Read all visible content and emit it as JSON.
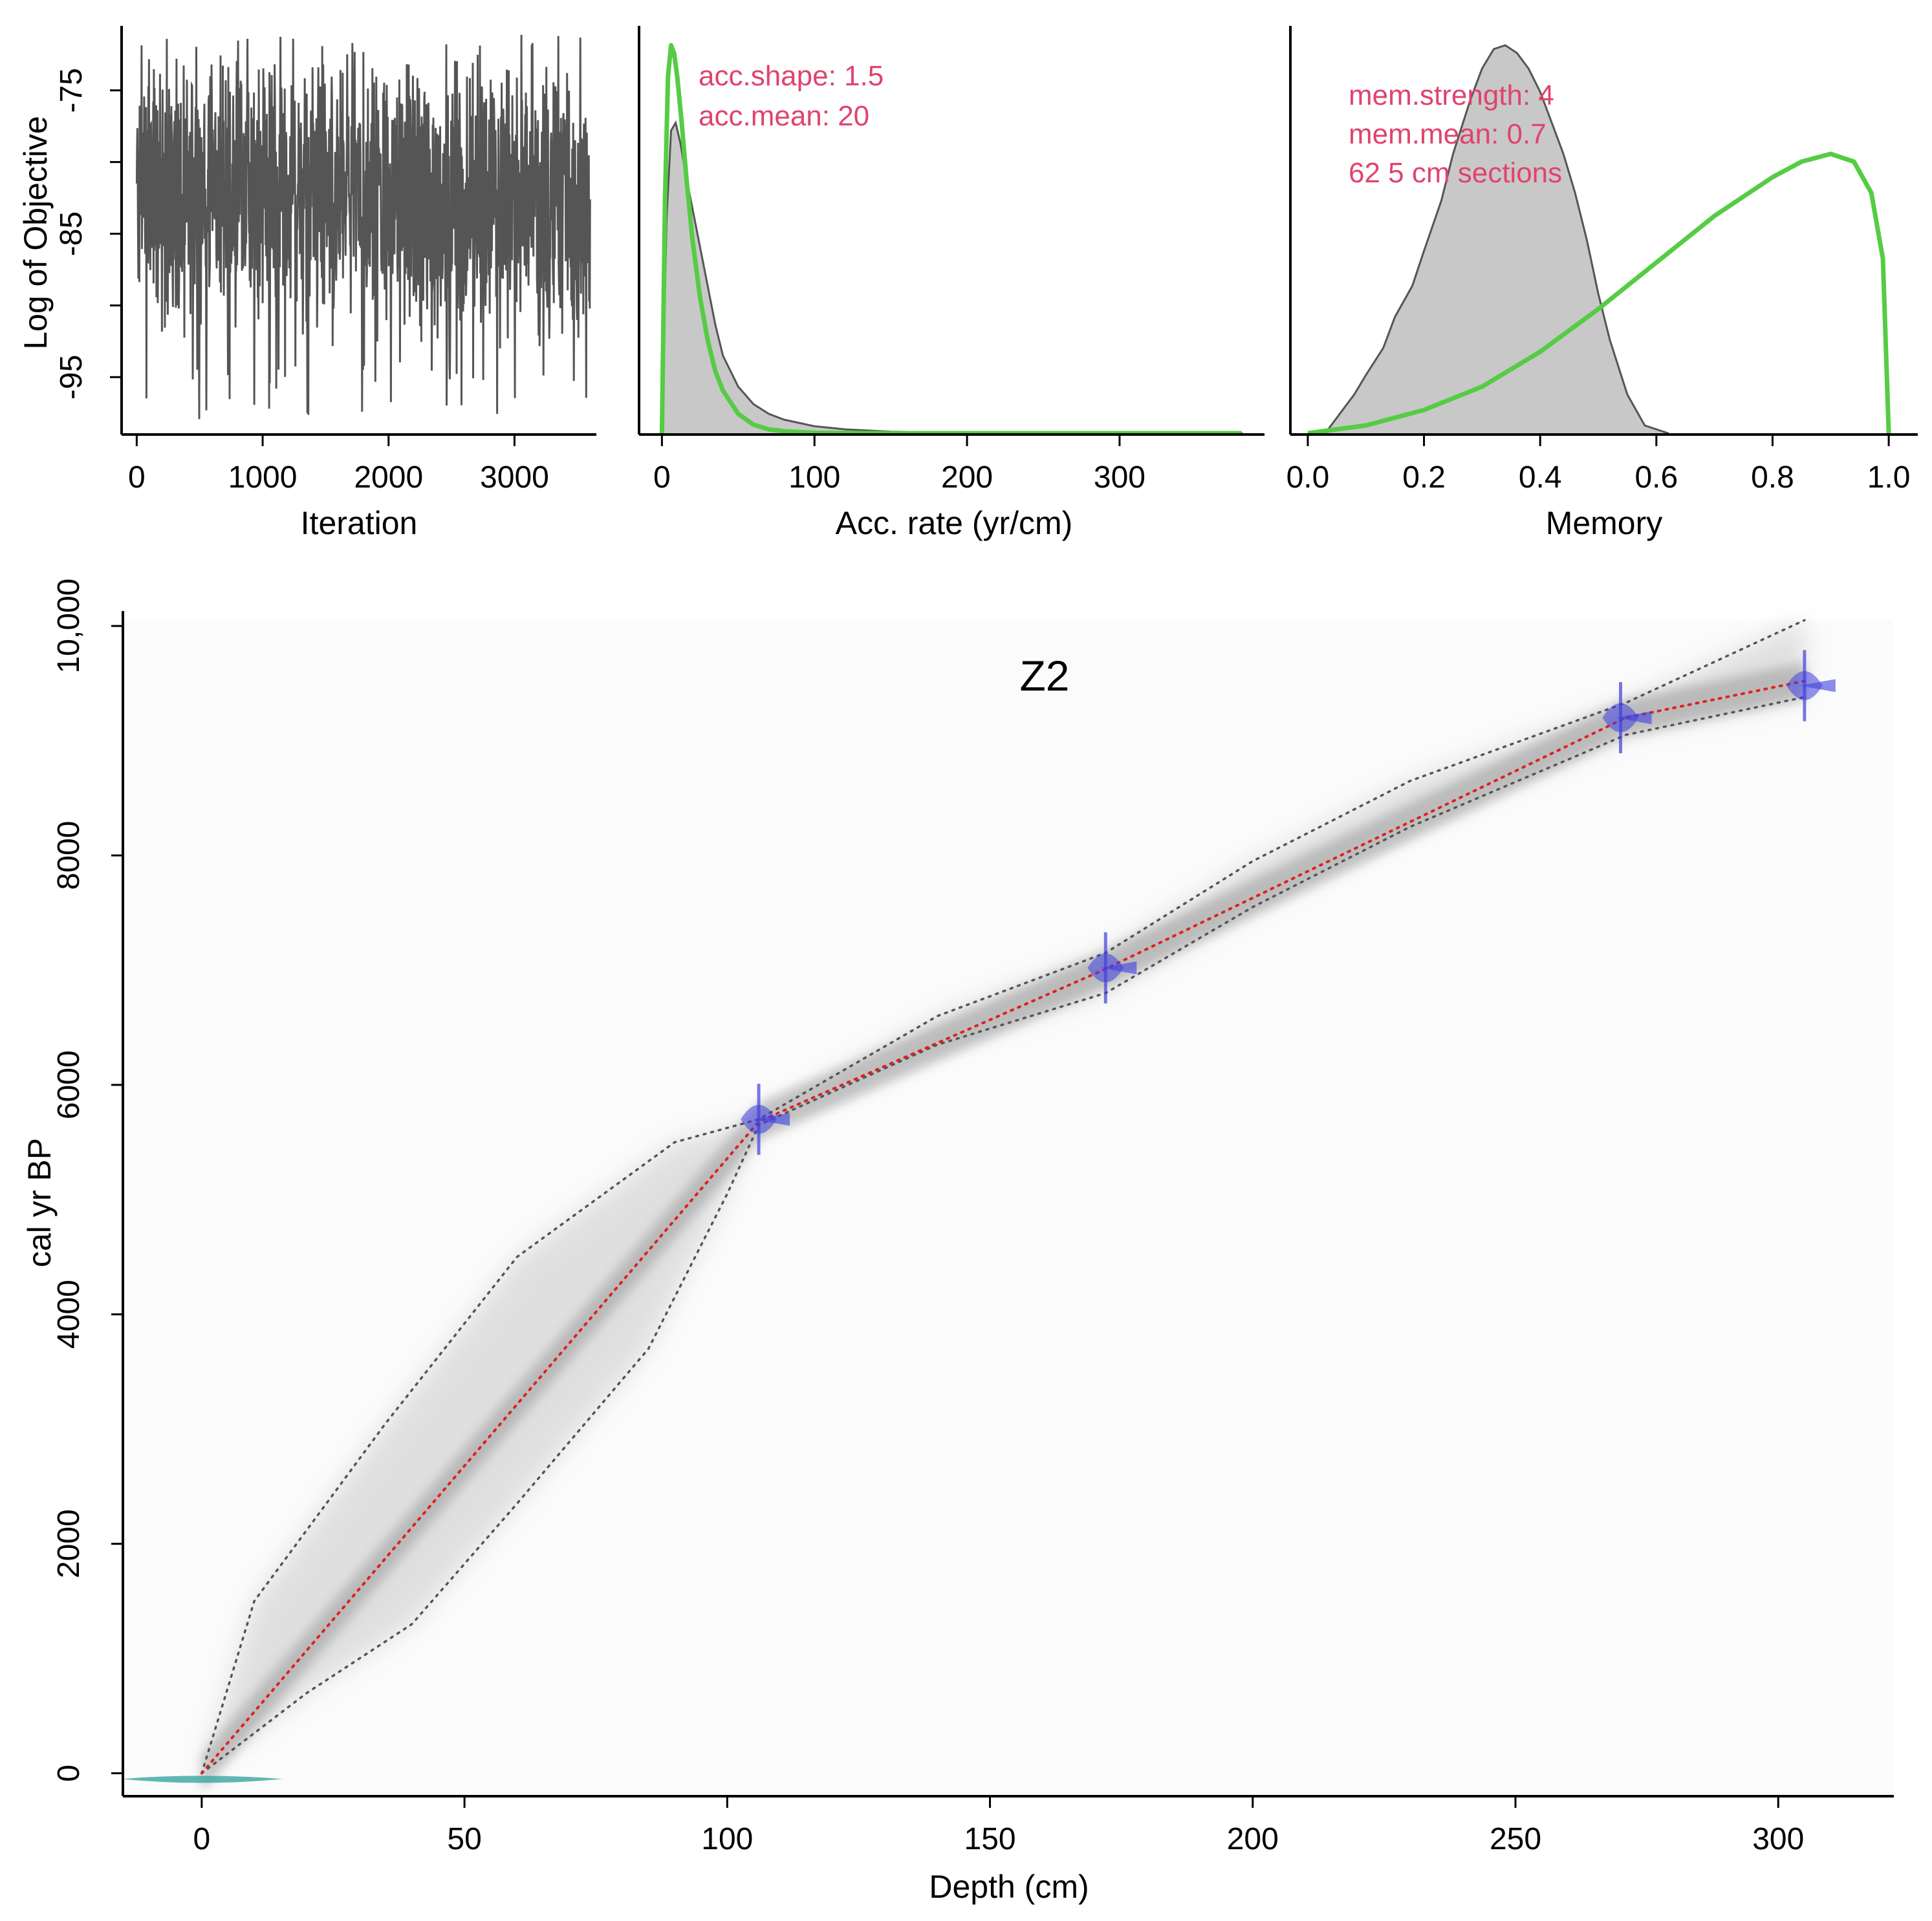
{
  "chart_data": [
    {
      "type": "line",
      "panel": "iterations",
      "xlabel": "Iteration",
      "ylabel": "Log of Objective",
      "xticks": [
        0,
        1000,
        2000,
        3000
      ],
      "yticks": [
        -75,
        -85,
        -95
      ],
      "xlim": [
        -120,
        3650
      ],
      "ylim": [
        -99,
        -70.5
      ],
      "n_iter": 3600,
      "trace_mean": -82.5,
      "trace_range": [
        -98,
        -71
      ],
      "color": "#555555"
    },
    {
      "type": "area",
      "panel": "accumulation",
      "xlabel": "Acc. rate (yr/cm)",
      "xticks": [
        0,
        100,
        200,
        300
      ],
      "xlim": [
        -15,
        395
      ],
      "annotations": [
        "acc.shape:  1.5",
        "acc.mean:  20"
      ],
      "annotation_color": "#e0436e",
      "series": [
        {
          "name": "posterior",
          "style": "grey-filled",
          "x": [
            0,
            3,
            6,
            9,
            12,
            16,
            20,
            25,
            30,
            35,
            40,
            50,
            60,
            70,
            80,
            100,
            120,
            150,
            200,
            250,
            300,
            380
          ],
          "y": [
            0.0,
            0.55,
            0.78,
            0.8,
            0.75,
            0.66,
            0.58,
            0.48,
            0.38,
            0.28,
            0.2,
            0.12,
            0.075,
            0.05,
            0.035,
            0.018,
            0.01,
            0.004,
            0.001,
            0.0005,
            0.0002,
            0
          ]
        },
        {
          "name": "prior",
          "style": "green-line",
          "x": [
            0,
            2,
            4,
            6,
            8,
            10,
            13,
            16,
            20,
            25,
            30,
            35,
            40,
            50,
            60,
            70,
            80,
            100,
            150,
            200,
            300,
            380
          ],
          "y": [
            0.0,
            0.6,
            0.92,
            1.0,
            0.98,
            0.92,
            0.8,
            0.66,
            0.5,
            0.35,
            0.24,
            0.16,
            0.11,
            0.05,
            0.022,
            0.01,
            0.005,
            0.001,
            0,
            0,
            0,
            0
          ]
        }
      ]
    },
    {
      "type": "area",
      "panel": "memory",
      "xlabel": "Memory",
      "xticks": [
        0.0,
        0.2,
        0.4,
        0.6,
        0.8,
        1.0
      ],
      "xlim": [
        -0.03,
        1.05
      ],
      "annotations": [
        "mem.strength: 4",
        "mem.mean: 0.7",
        "62 5 cm sections"
      ],
      "annotation_color": "#e0436e",
      "series": [
        {
          "name": "posterior",
          "style": "grey-filled",
          "x": [
            0.03,
            0.05,
            0.08,
            0.1,
            0.13,
            0.15,
            0.18,
            0.2,
            0.23,
            0.25,
            0.28,
            0.3,
            0.32,
            0.34,
            0.36,
            0.38,
            0.4,
            0.42,
            0.44,
            0.46,
            0.48,
            0.5,
            0.52,
            0.55,
            0.58,
            0.62
          ],
          "y": [
            0.0,
            0.04,
            0.1,
            0.15,
            0.22,
            0.3,
            0.38,
            0.47,
            0.6,
            0.72,
            0.86,
            0.94,
            0.99,
            1.0,
            0.98,
            0.94,
            0.88,
            0.8,
            0.72,
            0.62,
            0.5,
            0.36,
            0.24,
            0.1,
            0.02,
            0.0
          ]
        },
        {
          "name": "prior",
          "style": "green-line",
          "x": [
            0.0,
            0.05,
            0.1,
            0.2,
            0.3,
            0.4,
            0.5,
            0.6,
            0.7,
            0.8,
            0.85,
            0.9,
            0.94,
            0.97,
            0.99,
            1.0
          ],
          "y": [
            0.0,
            0.01,
            0.02,
            0.06,
            0.12,
            0.21,
            0.32,
            0.44,
            0.56,
            0.66,
            0.7,
            0.72,
            0.7,
            0.62,
            0.45,
            0.0
          ]
        }
      ]
    },
    {
      "type": "line",
      "panel": "age-depth",
      "title": "Z2",
      "xlabel": "Depth (cm)",
      "ylabel": "cal yr BP",
      "xticks": [
        0,
        50,
        100,
        150,
        200,
        250,
        300
      ],
      "yticks": [
        0,
        2000,
        4000,
        6000,
        8000,
        10000
      ],
      "ytick_labels": [
        "0",
        "2000",
        "4000",
        "6000",
        "8000",
        "10,000"
      ],
      "xlim": [
        -15,
        322
      ],
      "ylim": [
        -200,
        10130
      ],
      "series": [
        {
          "name": "mean model",
          "style": "red-dotted",
          "x": [
            0,
            106,
            172,
            271,
            305
          ],
          "y": [
            0,
            5680,
            7010,
            9200,
            9520
          ]
        },
        {
          "name": "95% upper range",
          "style": "grey-dotted",
          "x": [
            0,
            10,
            35,
            60,
            90,
            106,
            140,
            172,
            200,
            230,
            271,
            305
          ],
          "y": [
            0,
            1500,
            3050,
            4500,
            5500,
            5700,
            6600,
            7150,
            7950,
            8650,
            9330,
            10050
          ]
        },
        {
          "name": "95% lower range",
          "style": "grey-dotted",
          "x": [
            0,
            20,
            40,
            60,
            85,
            100,
            106,
            140,
            172,
            200,
            230,
            271,
            305
          ],
          "y": [
            0,
            700,
            1300,
            2350,
            3700,
            5050,
            5650,
            6350,
            6800,
            7550,
            8250,
            9050,
            9380
          ]
        }
      ],
      "dates": [
        {
          "depth": 0,
          "age": -50,
          "color": "#3aa6a0",
          "kind": "surface"
        },
        {
          "depth": 106,
          "age": 5700,
          "color": "#4040e0",
          "kind": "radiocarbon"
        },
        {
          "depth": 172,
          "age": 7020,
          "color": "#4040e0",
          "kind": "radiocarbon"
        },
        {
          "depth": 270,
          "age": 9200,
          "color": "#4040e0",
          "kind": "radiocarbon"
        },
        {
          "depth": 305,
          "age": 9480,
          "color": "#4040e0",
          "kind": "radiocarbon"
        }
      ]
    }
  ]
}
